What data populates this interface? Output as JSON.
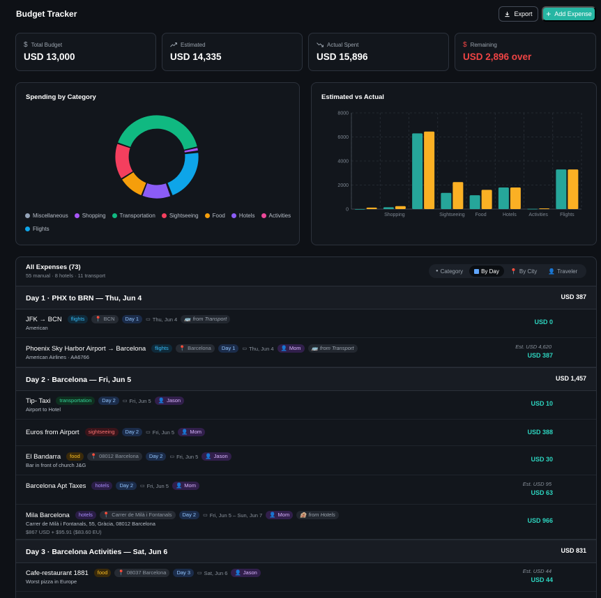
{
  "app": {
    "title": "Budget Tracker"
  },
  "toolbar": {
    "export_label": "Export",
    "add_label": "Add Expense"
  },
  "stats": [
    {
      "label": "Total Budget",
      "value": "USD 13,000",
      "icon": "dollar-icon"
    },
    {
      "label": "Estimated",
      "value": "USD 14,335",
      "icon": "trend-up-icon"
    },
    {
      "label": "Actual Spent",
      "value": "USD 15,896",
      "icon": "trend-down-icon"
    },
    {
      "label": "Remaining",
      "value": "USD 2,896 over",
      "icon": "dollar-icon",
      "color": "#ef4444"
    }
  ],
  "donut": {
    "title": "Spending by Category",
    "legend": [
      {
        "label": "Miscellaneous",
        "color": "#94a3b8"
      },
      {
        "label": "Shopping",
        "color": "#a855f7"
      },
      {
        "label": "Transportation",
        "color": "#10b981"
      },
      {
        "label": "Sightseeing",
        "color": "#f43f5e"
      },
      {
        "label": "Food",
        "color": "#f59e0b"
      },
      {
        "label": "Hotels",
        "color": "#8b5cf6"
      },
      {
        "label": "Activities",
        "color": "#ec4899"
      },
      {
        "label": "Flights",
        "color": "#0ea5e9"
      }
    ]
  },
  "chart_data": [
    {
      "type": "pie",
      "title": "Spending by Category",
      "categories": [
        "Miscellaneous",
        "Shopping",
        "Transportation",
        "Sightseeing",
        "Food",
        "Hotels",
        "Activities",
        "Flights"
      ],
      "values": [
        50,
        250,
        6450,
        2250,
        1600,
        1800,
        60,
        3300
      ],
      "colors": [
        "#94a3b8",
        "#a855f7",
        "#10b981",
        "#f43f5e",
        "#f59e0b",
        "#8b5cf6",
        "#ec4899",
        "#0ea5e9"
      ]
    },
    {
      "type": "bar",
      "title": "Estimated vs Actual",
      "categories": [
        "",
        "Shopping",
        "",
        "Sightseeing",
        "Food",
        "Hotels",
        "Activities",
        "Flights"
      ],
      "series": [
        {
          "values": [
            0,
            150,
            6300,
            1350,
            1150,
            1800,
            20,
            3300
          ],
          "color": "#26a69a"
        },
        {
          "values": [
            120,
            250,
            6450,
            2250,
            1600,
            1800,
            60,
            3300
          ],
          "color": "#fbb024"
        }
      ],
      "ylim": [
        0,
        8000
      ],
      "yticks": [
        0,
        2000,
        4000,
        6000,
        8000
      ],
      "grid": true
    }
  ],
  "expenses": {
    "title": "All Expenses (73)",
    "subtitle": "55 manual · 8 hotels · 11 transport",
    "toggle": [
      "Category",
      "By Day",
      "By City",
      "Traveler"
    ],
    "days": [
      {
        "title": "Day 1 · PHX to BRN — Thu, Jun 4",
        "total": "USD 387",
        "items": [
          {
            "name": "JFK → BCN",
            "cat": "flights",
            "loc": "BCN",
            "day": "Day 1",
            "date": "Thu, Jun 4",
            "traveler": "",
            "source": "from Transport",
            "sub": "American",
            "sub2": "",
            "est": "",
            "amount": "USD 0"
          },
          {
            "name": "Phoenix Sky Harbor Airport → Barcelona",
            "cat": "flights",
            "loc": "Barcelona",
            "day": "Day 1",
            "date": "Thu, Jun 4",
            "traveler": "Mom",
            "source": "from Transport",
            "sub": "American Airlines · AA6766",
            "sub2": "",
            "est": "Est. USD 4,620",
            "amount": "USD 387"
          }
        ]
      },
      {
        "title": "Day 2 · Barcelona — Fri, Jun 5",
        "total": "USD 1,457",
        "items": [
          {
            "name": "Tip- Taxi",
            "cat": "transportation",
            "loc": "",
            "day": "Day 2",
            "date": "Fri, Jun 5",
            "traveler": "Jason",
            "source": "",
            "sub": "Airport to Hotel",
            "sub2": "",
            "est": "",
            "amount": "USD 10"
          },
          {
            "name": "Euros from Airport",
            "cat": "sightseeing",
            "loc": "",
            "day": "Day 2",
            "date": "Fri, Jun 5",
            "traveler": "Mom",
            "source": "",
            "sub": "",
            "sub2": "",
            "est": "",
            "amount": "USD 388"
          },
          {
            "name": "El Bandarra",
            "cat": "food",
            "loc": "08012 Barcelona",
            "day": "Day 2",
            "date": "Fri, Jun 5",
            "traveler": "Jason",
            "source": "",
            "sub": "Bar in front of church J&G",
            "sub2": "",
            "est": "",
            "amount": "USD 30"
          },
          {
            "name": "Barcelona Apt Taxes",
            "cat": "hotels",
            "loc": "",
            "day": "Day 2",
            "date": "Fri, Jun 5",
            "traveler": "Mom",
            "source": "",
            "sub": "",
            "sub2": "",
            "est": "Est. USD 95",
            "amount": "USD 63"
          },
          {
            "name": "Mila Barcelona",
            "cat": "hotels",
            "loc": "Carrer de Milà i Fontanals",
            "day": "Day 2",
            "date": "Fri, Jun 5 – Sun, Jun 7",
            "traveler": "Mom",
            "source": "from Hotels",
            "sub": "Carrer de Milà i Fontanals, 55, Gràcia, 08012 Barcelona",
            "sub2": "$867 USD + $95.91 ($83.60 EU)",
            "est": "",
            "amount": "USD 966"
          }
        ]
      },
      {
        "title": "Day 3 · Barcelona Activities — Sat, Jun 6",
        "total": "USD 831",
        "items": [
          {
            "name": "Cafe-restaurant 1881",
            "cat": "food",
            "loc": "08037 Barcelona",
            "day": "Day 3",
            "date": "Sat, Jun 6",
            "traveler": "Jason",
            "source": "",
            "sub": "Worst pizza in Europe",
            "sub2": "",
            "est": "Est. USD 44",
            "amount": "USD 44"
          }
        ]
      }
    ]
  }
}
